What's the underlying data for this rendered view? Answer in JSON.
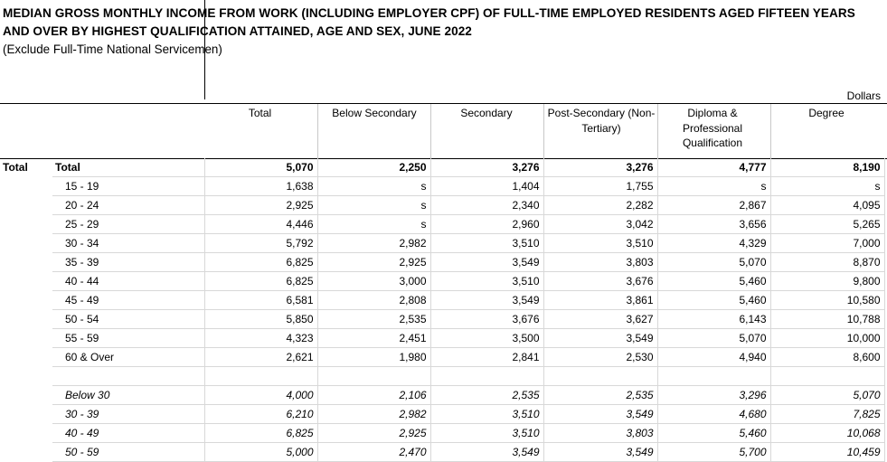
{
  "title": "MEDIAN GROSS MONTHLY INCOME FROM WORK (INCLUDING EMPLOYER CPF) OF FULL-TIME EMPLOYED RESIDENTS AGED FIFTEEN YEARS AND OVER BY HIGHEST QUALIFICATION ATTAINED, AGE AND SEX, JUNE 2022",
  "subtitle": "(Exclude Full-Time National Servicemen)",
  "units": "Dollars",
  "columns": [
    {
      "label": "Total"
    },
    {
      "label": "Below Secondary"
    },
    {
      "label": "Secondary"
    },
    {
      "label": "Post-Secondary (Non-Tertiary)"
    },
    {
      "label": "Diploma & Professional Qualification"
    },
    {
      "label": "Degree"
    }
  ],
  "sex_label": "Total",
  "rows": [
    {
      "age": "Total",
      "values": [
        "5,070",
        "2,250",
        "3,276",
        "3,276",
        "4,777",
        "8,190"
      ]
    },
    {
      "age": "15 - 19",
      "values": [
        "1,638",
        "s",
        "1,404",
        "1,755",
        "s",
        "s"
      ]
    },
    {
      "age": "20 - 24",
      "values": [
        "2,925",
        "s",
        "2,340",
        "2,282",
        "2,867",
        "4,095"
      ]
    },
    {
      "age": "25 - 29",
      "values": [
        "4,446",
        "s",
        "2,960",
        "3,042",
        "3,656",
        "5,265"
      ]
    },
    {
      "age": "30 - 34",
      "values": [
        "5,792",
        "2,982",
        "3,510",
        "3,510",
        "4,329",
        "7,000"
      ]
    },
    {
      "age": "35 - 39",
      "values": [
        "6,825",
        "2,925",
        "3,549",
        "3,803",
        "5,070",
        "8,870"
      ]
    },
    {
      "age": "40 - 44",
      "values": [
        "6,825",
        "3,000",
        "3,510",
        "3,676",
        "5,460",
        "9,800"
      ]
    },
    {
      "age": "45 - 49",
      "values": [
        "6,581",
        "2,808",
        "3,549",
        "3,861",
        "5,460",
        "10,580"
      ]
    },
    {
      "age": "50 - 54",
      "values": [
        "5,850",
        "2,535",
        "3,676",
        "3,627",
        "6,143",
        "10,788"
      ]
    },
    {
      "age": "55 - 59",
      "values": [
        "4,323",
        "2,451",
        "3,500",
        "3,549",
        "5,070",
        "10,000"
      ]
    },
    {
      "age": "60 & Over",
      "values": [
        "2,621",
        "1,980",
        "2,841",
        "2,530",
        "4,940",
        "8,600"
      ]
    },
    {
      "age": "",
      "values": [
        "",
        "",
        "",
        "",
        "",
        ""
      ]
    },
    {
      "age": "Below 30",
      "values": [
        "4,000",
        "2,106",
        "2,535",
        "2,535",
        "3,296",
        "5,070"
      ]
    },
    {
      "age": "30 - 39",
      "values": [
        "6,210",
        "2,982",
        "3,510",
        "3,549",
        "4,680",
        "7,825"
      ]
    },
    {
      "age": "40 - 49",
      "values": [
        "6,825",
        "2,925",
        "3,510",
        "3,803",
        "5,460",
        "10,068"
      ]
    },
    {
      "age": "50 - 59",
      "values": [
        "5,000",
        "2,470",
        "3,549",
        "3,549",
        "5,700",
        "10,459"
      ]
    }
  ]
}
